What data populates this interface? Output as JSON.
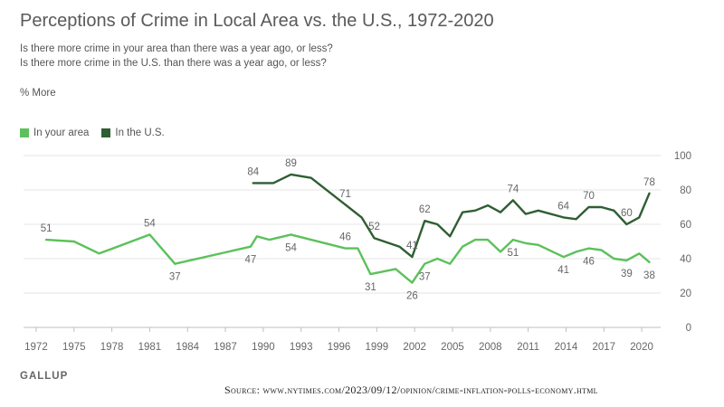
{
  "chart_data": {
    "type": "line",
    "title": "Perceptions of Crime in Local Area vs. the U.S., 1972-2020",
    "subtitle_lines": [
      "Is there more crime in your area than there was a year ago, or less?",
      "Is there more crime in the U.S. than there was a year ago, or less?"
    ],
    "unit_label": "% More",
    "xlim": [
      1971,
      2021.5
    ],
    "ylim": [
      0,
      100
    ],
    "y_ticks": [
      0,
      20,
      40,
      60,
      80,
      100
    ],
    "x_ticks": [
      1972,
      1975,
      1978,
      1981,
      1984,
      1987,
      1990,
      1993,
      1996,
      1999,
      2002,
      2005,
      2008,
      2011,
      2014,
      2017,
      2020
    ],
    "grid": true,
    "legend_position": "top-left",
    "series": [
      {
        "name": "In your area",
        "color": "#5cc15a",
        "points": [
          [
            1972.8,
            51
          ],
          [
            1975,
            50
          ],
          [
            1977,
            43
          ],
          [
            1981,
            54
          ],
          [
            1983,
            37
          ],
          [
            1989,
            47
          ],
          [
            1989.5,
            53
          ],
          [
            1990.5,
            51
          ],
          [
            1992.2,
            54
          ],
          [
            1996.5,
            46
          ],
          [
            1997.5,
            46
          ],
          [
            1998.5,
            31
          ],
          [
            2000.5,
            34
          ],
          [
            2001.8,
            26
          ],
          [
            2002.8,
            37
          ],
          [
            2003.8,
            40
          ],
          [
            2004.8,
            37
          ],
          [
            2005.8,
            47
          ],
          [
            2006.8,
            51
          ],
          [
            2007.8,
            51
          ],
          [
            2008.8,
            44
          ],
          [
            2009.8,
            51
          ],
          [
            2010.8,
            49
          ],
          [
            2011.8,
            48
          ],
          [
            2013.8,
            41
          ],
          [
            2014.8,
            44
          ],
          [
            2015.8,
            46
          ],
          [
            2016.8,
            45
          ],
          [
            2017.8,
            40
          ],
          [
            2018.8,
            39
          ],
          [
            2019.8,
            43
          ],
          [
            2020.6,
            38
          ]
        ]
      },
      {
        "name": "In the U.S.",
        "color": "#2f5e33",
        "points": [
          [
            1989.2,
            84
          ],
          [
            1990.8,
            84
          ],
          [
            1992.2,
            89
          ],
          [
            1993.8,
            87
          ],
          [
            1997.8,
            64
          ],
          [
            1998.8,
            52
          ],
          [
            2000.8,
            47
          ],
          [
            2001.8,
            41
          ],
          [
            2002.8,
            62
          ],
          [
            2003.8,
            60
          ],
          [
            2004.8,
            53
          ],
          [
            2005.8,
            67
          ],
          [
            2006.8,
            68
          ],
          [
            2007.8,
            71
          ],
          [
            2008.8,
            67
          ],
          [
            2009.8,
            74
          ],
          [
            2010.8,
            66
          ],
          [
            2011.8,
            68
          ],
          [
            2013.8,
            64
          ],
          [
            2014.8,
            63
          ],
          [
            2015.8,
            70
          ],
          [
            2016.8,
            70
          ],
          [
            2017.8,
            68
          ],
          [
            2018.8,
            60
          ],
          [
            2019.8,
            64
          ],
          [
            2020.6,
            78
          ]
        ]
      }
    ],
    "data_labels": [
      {
        "series": "In your area",
        "x": 1972.8,
        "y": 51,
        "text": "51",
        "pos": "above"
      },
      {
        "series": "In your area",
        "x": 1981,
        "y": 54,
        "text": "54",
        "pos": "above"
      },
      {
        "series": "In your area",
        "x": 1983,
        "y": 37,
        "text": "37",
        "pos": "below"
      },
      {
        "series": "In your area",
        "x": 1989,
        "y": 47,
        "text": "47",
        "pos": "below"
      },
      {
        "series": "In your area",
        "x": 1992.2,
        "y": 54,
        "text": "54",
        "pos": "below"
      },
      {
        "series": "In your area",
        "x": 1996.5,
        "y": 46,
        "text": "46",
        "pos": "above"
      },
      {
        "series": "In your area",
        "x": 1998.5,
        "y": 31,
        "text": "31",
        "pos": "below"
      },
      {
        "series": "In your area",
        "x": 2001.8,
        "y": 26,
        "text": "26",
        "pos": "below"
      },
      {
        "series": "In your area",
        "x": 2002.8,
        "y": 37,
        "text": "37",
        "pos": "below"
      },
      {
        "series": "In your area",
        "x": 2009.8,
        "y": 51,
        "text": "51",
        "pos": "below"
      },
      {
        "series": "In your area",
        "x": 2013.8,
        "y": 41,
        "text": "41",
        "pos": "below"
      },
      {
        "series": "In your area",
        "x": 2015.8,
        "y": 46,
        "text": "46",
        "pos": "below"
      },
      {
        "series": "In your area",
        "x": 2018.8,
        "y": 39,
        "text": "39",
        "pos": "below"
      },
      {
        "series": "In your area",
        "x": 2020.6,
        "y": 38,
        "text": "38",
        "pos": "below"
      },
      {
        "series": "In the U.S.",
        "x": 1989.2,
        "y": 84,
        "text": "84",
        "pos": "above"
      },
      {
        "series": "In the U.S.",
        "x": 1992.2,
        "y": 89,
        "text": "89",
        "pos": "above"
      },
      {
        "series": "In the U.S.",
        "x": 1996.5,
        "y": 71,
        "text": "71",
        "pos": "above"
      },
      {
        "series": "In the U.S.",
        "x": 1998.8,
        "y": 52,
        "text": "52",
        "pos": "above"
      },
      {
        "series": "In the U.S.",
        "x": 2001.8,
        "y": 41,
        "text": "41",
        "pos": "above"
      },
      {
        "series": "In the U.S.",
        "x": 2002.8,
        "y": 62,
        "text": "62",
        "pos": "above"
      },
      {
        "series": "In the U.S.",
        "x": 2009.8,
        "y": 74,
        "text": "74",
        "pos": "above"
      },
      {
        "series": "In the U.S.",
        "x": 2013.8,
        "y": 64,
        "text": "64",
        "pos": "above"
      },
      {
        "series": "In the U.S.",
        "x": 2015.8,
        "y": 70,
        "text": "70",
        "pos": "above"
      },
      {
        "series": "In the U.S.",
        "x": 2018.8,
        "y": 60,
        "text": "60",
        "pos": "above"
      },
      {
        "series": "In the U.S.",
        "x": 2020.6,
        "y": 78,
        "text": "78",
        "pos": "above"
      }
    ]
  },
  "legend": {
    "local_label": "In your area",
    "us_label": "In the U.S.",
    "local_color": "#5cc15a",
    "us_color": "#2f5e33"
  },
  "footer": {
    "brand": "GALLUP",
    "source": "Source: www.nytimes.com/2023/09/12/opinion/crime-inflation-polls-economy.html"
  }
}
